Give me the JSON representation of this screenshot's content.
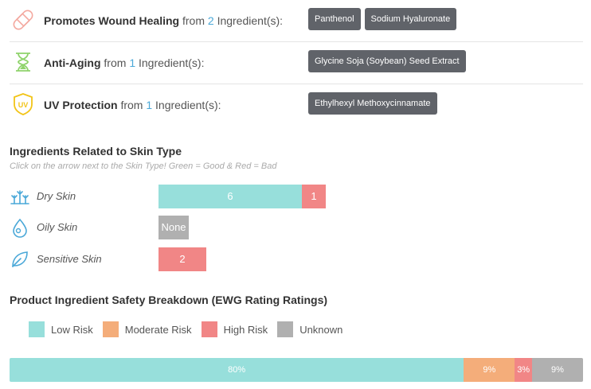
{
  "benefits": [
    {
      "name": "Promotes Wound Healing",
      "from": "from",
      "count": "2",
      "suffix": "Ingredient(s):",
      "icon": "bandage-icon",
      "icon_color": "#f4a9a0",
      "chips": [
        "Panthenol",
        "Sodium Hyaluronate"
      ]
    },
    {
      "name": "Anti-Aging",
      "from": "from",
      "count": "1",
      "suffix": "Ingredient(s):",
      "icon": "hourglass-icon",
      "icon_color": "#8fd36b",
      "chips": [
        "Glycine Soja (Soybean) Seed Extract"
      ]
    },
    {
      "name": "UV Protection",
      "from": "from",
      "count": "1",
      "suffix": "Ingredient(s):",
      "icon": "uv-shield-icon",
      "icon_color": "#f2c417",
      "chips": [
        "Ethylhexyl Methoxycinnamate"
      ]
    }
  ],
  "skin_section": {
    "title": "Ingredients Related to Skin Type",
    "hint": "Click on the arrow next to the Skin Type! Green = Good & Red = Bad",
    "rows": [
      {
        "label": "Dry Skin",
        "icon": "dry-skin-icon",
        "good": "6",
        "bad": "1",
        "none": null
      },
      {
        "label": "Oily Skin",
        "icon": "oily-skin-icon",
        "good": null,
        "bad": null,
        "none": "None"
      },
      {
        "label": "Sensitive Skin",
        "icon": "sensitive-skin-icon",
        "good": null,
        "bad": "2",
        "none": null
      }
    ]
  },
  "safety_section": {
    "title": "Product Ingredient Safety Breakdown (EWG Rating Ratings)",
    "legend": [
      {
        "label": "Low Risk",
        "color": "#97dfdb"
      },
      {
        "label": "Moderate Risk",
        "color": "#f4ad7a"
      },
      {
        "label": "High Risk",
        "color": "#f18686"
      },
      {
        "label": "Unknown",
        "color": "#b0b0b0"
      }
    ],
    "segments": [
      {
        "label": "80%",
        "value": 80,
        "color": "#97dfdb"
      },
      {
        "label": "9%",
        "value": 9,
        "color": "#f4ad7a"
      },
      {
        "label": "3%",
        "value": 3,
        "color": "#f18686"
      },
      {
        "label": "9%",
        "value": 9,
        "color": "#b0b0b0"
      }
    ]
  }
}
